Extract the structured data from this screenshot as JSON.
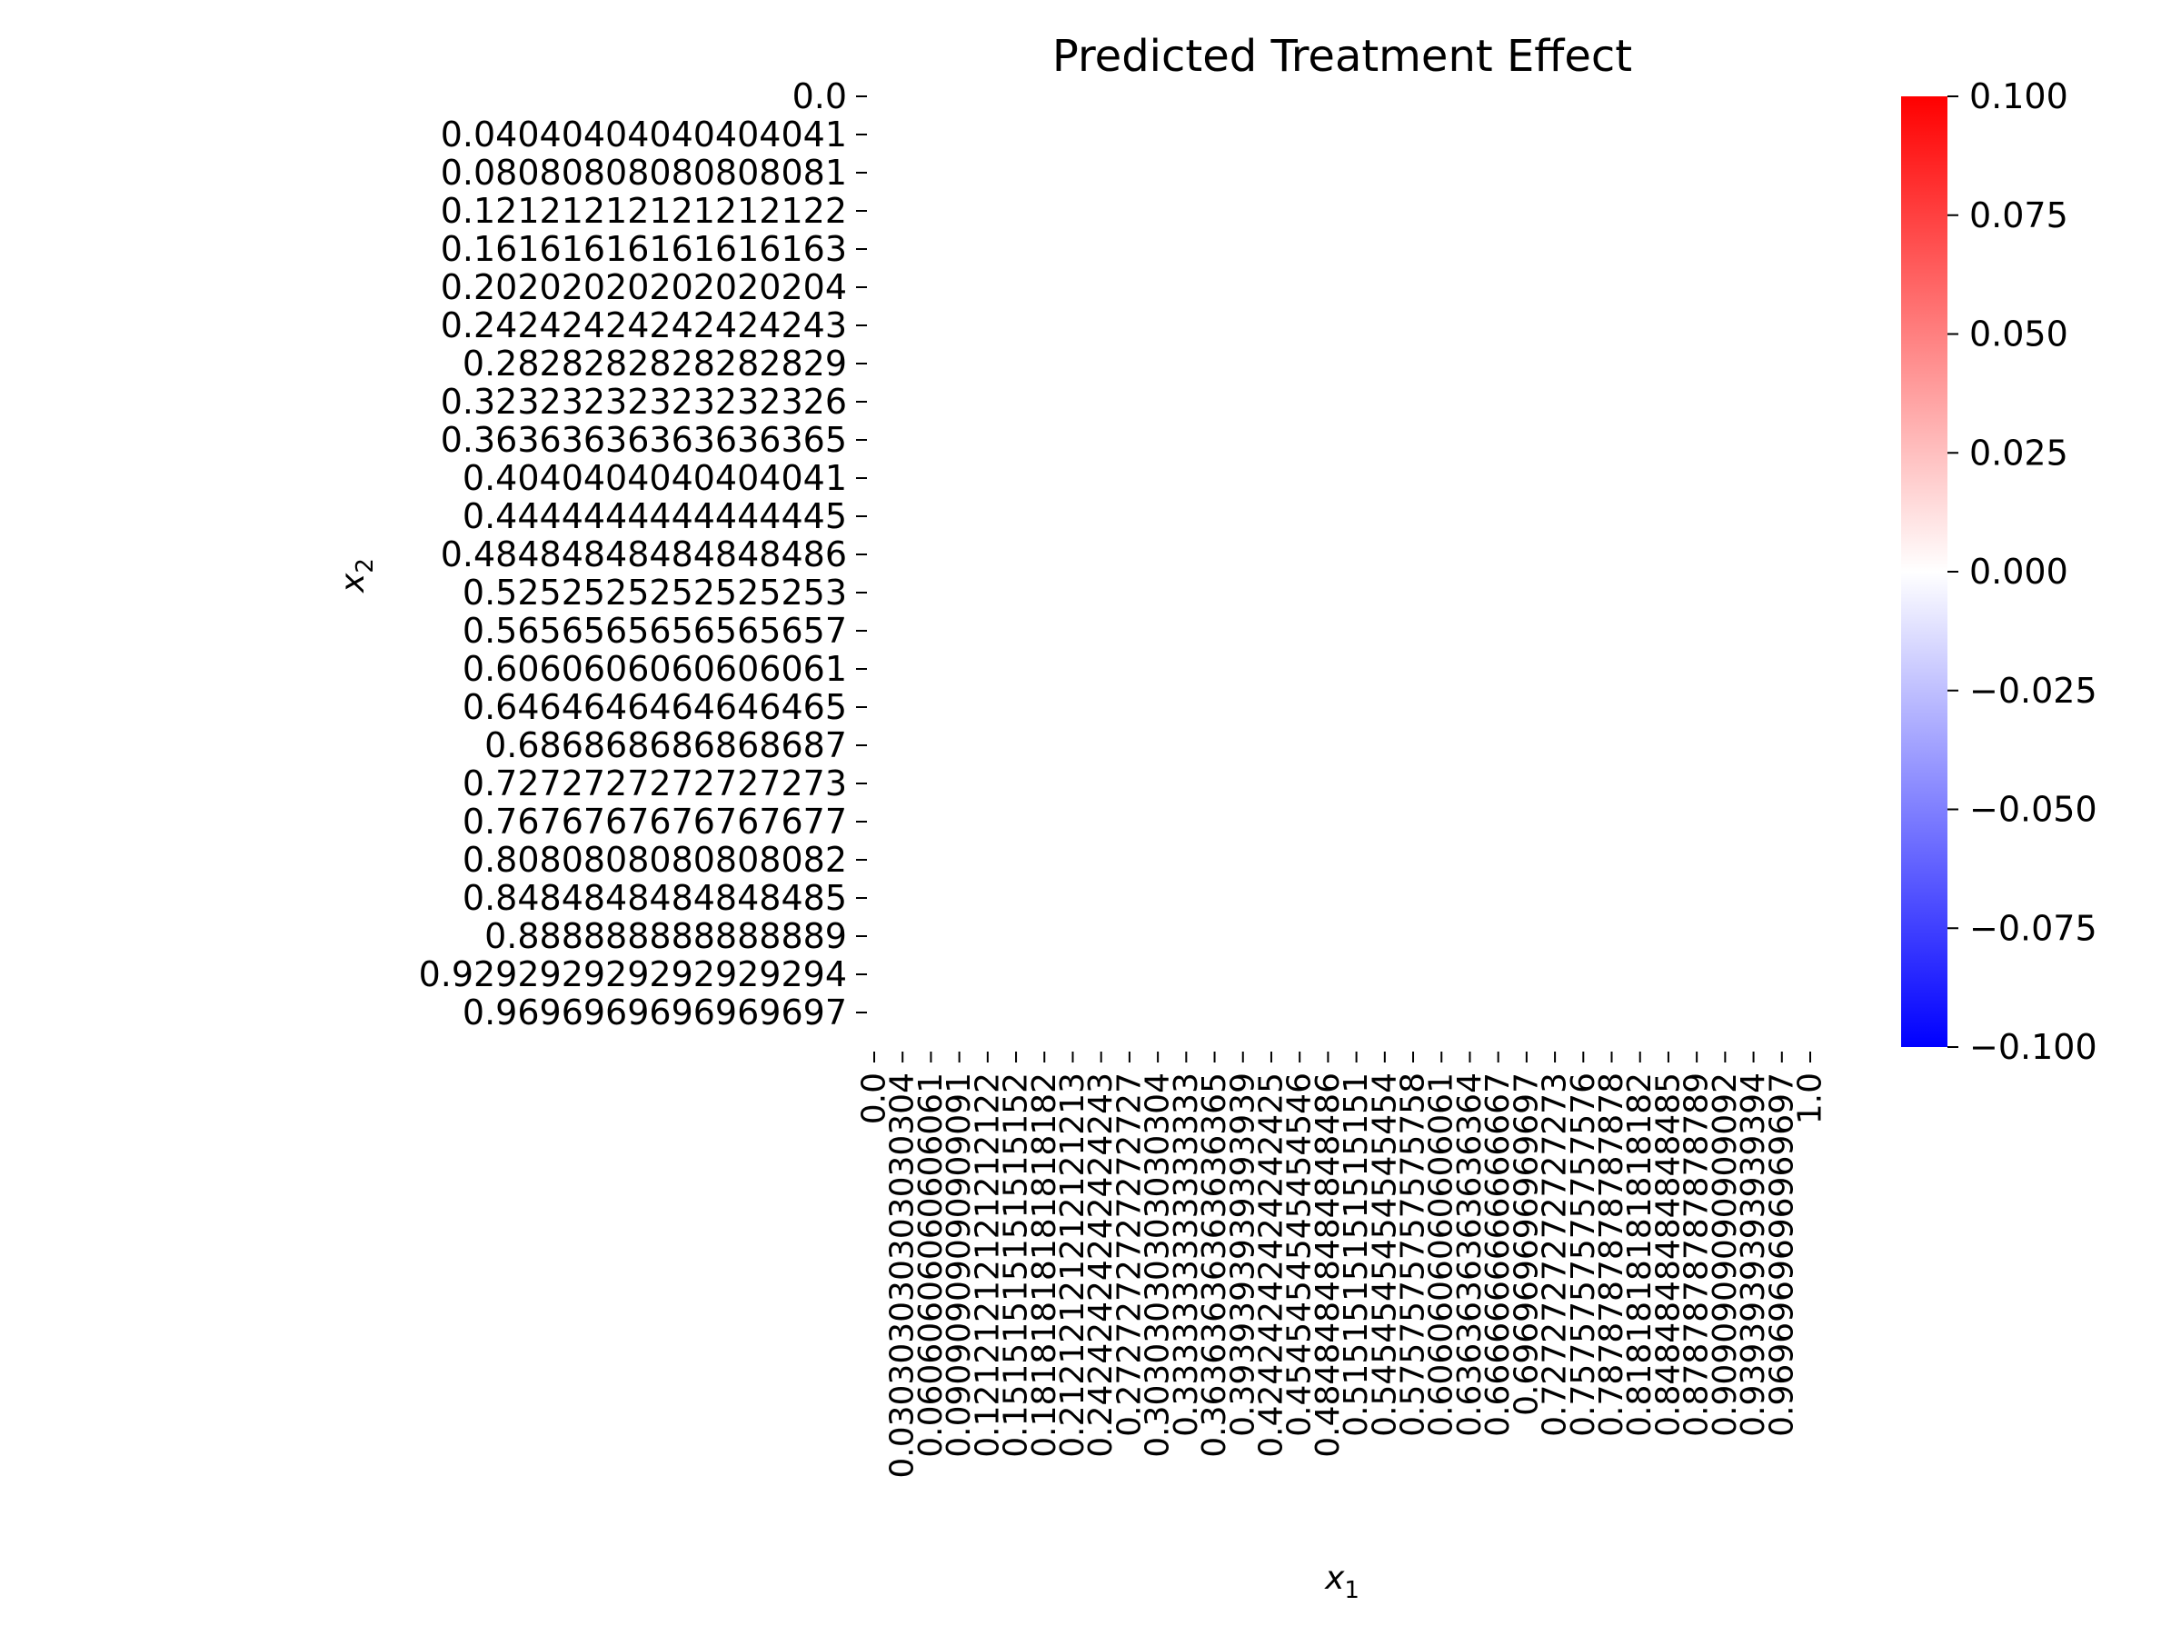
{
  "chart_data": {
    "type": "heatmap",
    "title": "Predicted Treatment Effect",
    "xlabel": "x",
    "xlabel_sub": "1",
    "ylabel": "x",
    "ylabel_sub": "2",
    "x_ticklabels": [
      "0.0",
      "0.030303030303030304",
      "0.06060606060606061",
      "0.09090909090909091",
      "0.12121212121212122",
      "0.15151515151515152",
      "0.18181818181818182",
      "0.21212121212121213",
      "0.24242424242424243",
      "0.2727272727272727",
      "0.30303030303030304",
      "0.3333333333333333",
      "0.36363636363636365",
      "0.3939393939393939",
      "0.42424242424242425",
      "0.4545454545454546",
      "0.48484848484848486",
      "0.5151515151515151",
      "0.5454545454545454",
      "0.5757575757575758",
      "0.6060606060606061",
      "0.6363636363636364",
      "0.6666666666666667",
      "0.696969696969697",
      "0.7272727272727273",
      "0.7575757575757576",
      "0.7878787878787878",
      "0.8181818181818182",
      "0.8484848484848485",
      "0.8787878787878789",
      "0.9090909090909092",
      "0.9393939393939394",
      "0.9696969696969697",
      "1.0"
    ],
    "y_ticklabels": [
      "0.0",
      "0.04040404040404041",
      "0.08080808080808081",
      "0.12121212121212122",
      "0.16161616161616163",
      "0.20202020202020204",
      "0.24242424242424243",
      "0.2828282828282829",
      "0.32323232323232326",
      "0.36363636363636365",
      "0.4040404040404041",
      "0.4444444444444445",
      "0.48484848484848486",
      "0.5252525252525253",
      "0.5656565656565657",
      "0.6060606060606061",
      "0.6464646464646465",
      "0.686868686868687",
      "0.7272727272727273",
      "0.7676767676767677",
      "0.8080808080808082",
      "0.8484848484848485",
      "0.888888888888889",
      "0.929292929292929294",
      "0.9696969696969697"
    ],
    "z_value_all_cells": 0.0,
    "colorbar": {
      "ticklabels": [
        "0.100",
        "0.075",
        "0.050",
        "0.025",
        "0.000",
        "−0.025",
        "−0.050",
        "−0.075",
        "−0.100"
      ],
      "range": [
        -0.1,
        0.1
      ],
      "colormap": "bwr",
      "colors": {
        "low": "#0000ff",
        "mid": "#ffffff",
        "high": "#ff0000"
      }
    },
    "legend": "none",
    "grid": false
  }
}
